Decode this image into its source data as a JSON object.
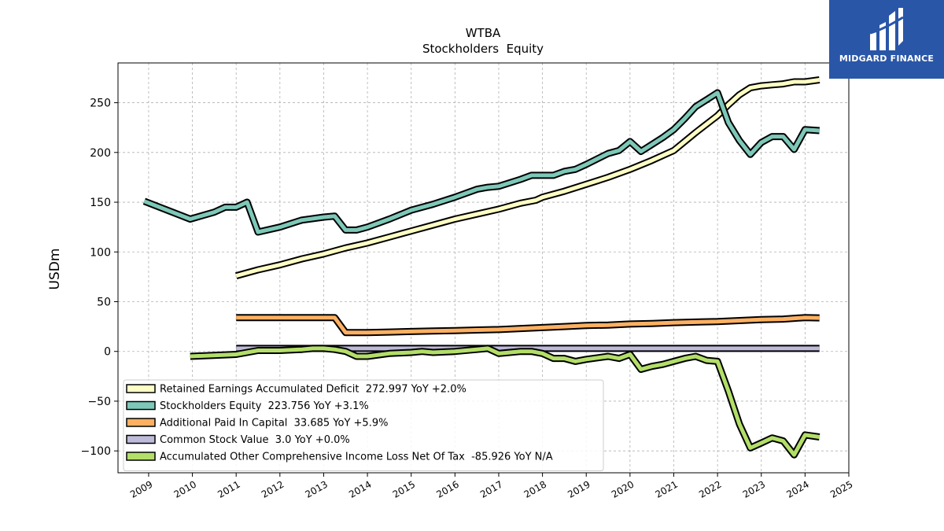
{
  "chart_data": {
    "type": "line",
    "title": "WTBA",
    "subtitle": "Stockholders  Equity",
    "ylabel": "USDm",
    "xlabel": "",
    "xlim": [
      2008.3,
      2025
    ],
    "ylim": [
      -122,
      290
    ],
    "x_ticks": [
      2009,
      2010,
      2011,
      2012,
      2013,
      2014,
      2015,
      2016,
      2017,
      2018,
      2019,
      2020,
      2021,
      2022,
      2023,
      2024,
      2025
    ],
    "x_tick_labels": [
      "2009",
      "2010",
      "2011",
      "2012",
      "2013",
      "2014",
      "2015",
      "2016",
      "2017",
      "2018",
      "2019",
      "2020",
      "2021",
      "2022",
      "2023",
      "2024",
      "2025"
    ],
    "y_ticks": [
      -100,
      -50,
      0,
      50,
      100,
      150,
      200,
      250
    ],
    "y_tick_labels": [
      "−100",
      "−50",
      "0",
      "50",
      "100",
      "150",
      "200",
      "250"
    ],
    "grid": true,
    "legend_position": "lower-left",
    "series": [
      {
        "name": "Retained Earnings Accumulated Deficit",
        "legend": "Retained Earnings Accumulated Deficit  272.997 YoY +2.0%",
        "color": "#ffffc4",
        "points": [
          [
            2011.0,
            76
          ],
          [
            2011.5,
            82
          ],
          [
            2012.0,
            87
          ],
          [
            2012.5,
            93
          ],
          [
            2013.0,
            98
          ],
          [
            2013.5,
            104
          ],
          [
            2014.0,
            109
          ],
          [
            2014.5,
            115
          ],
          [
            2015.0,
            121
          ],
          [
            2015.5,
            127
          ],
          [
            2016.0,
            133
          ],
          [
            2016.5,
            138
          ],
          [
            2017.0,
            143
          ],
          [
            2017.5,
            149
          ],
          [
            2017.85,
            152
          ],
          [
            2018.0,
            155
          ],
          [
            2018.5,
            161
          ],
          [
            2019.0,
            168
          ],
          [
            2019.5,
            175
          ],
          [
            2020.0,
            183
          ],
          [
            2020.5,
            192
          ],
          [
            2021.0,
            202
          ],
          [
            2021.5,
            220
          ],
          [
            2022.0,
            237
          ],
          [
            2022.25,
            248
          ],
          [
            2022.5,
            258
          ],
          [
            2022.75,
            265
          ],
          [
            2023.0,
            267
          ],
          [
            2023.25,
            268
          ],
          [
            2023.5,
            269
          ],
          [
            2023.75,
            271
          ],
          [
            2024.0,
            271
          ],
          [
            2024.33,
            273
          ]
        ]
      },
      {
        "name": "Stockholders Equity",
        "legend": "Stockholders Equity  223.756 YoY +3.1%",
        "color": "#7dc8b8",
        "points": [
          [
            2008.9,
            151
          ],
          [
            2009.95,
            133
          ],
          [
            2010.5,
            140
          ],
          [
            2010.75,
            145
          ],
          [
            2011.0,
            145
          ],
          [
            2011.25,
            150
          ],
          [
            2011.5,
            120
          ],
          [
            2012.0,
            125
          ],
          [
            2012.5,
            132
          ],
          [
            2013.0,
            135
          ],
          [
            2013.25,
            136
          ],
          [
            2013.5,
            122
          ],
          [
            2013.75,
            122
          ],
          [
            2014.0,
            125
          ],
          [
            2014.5,
            133
          ],
          [
            2015.0,
            142
          ],
          [
            2015.5,
            148
          ],
          [
            2016.0,
            155
          ],
          [
            2016.5,
            163
          ],
          [
            2016.75,
            165
          ],
          [
            2017.0,
            166
          ],
          [
            2017.5,
            173
          ],
          [
            2017.75,
            177
          ],
          [
            2018.0,
            177
          ],
          [
            2018.25,
            177
          ],
          [
            2018.5,
            181
          ],
          [
            2018.75,
            183
          ],
          [
            2019.0,
            188
          ],
          [
            2019.5,
            199
          ],
          [
            2019.75,
            202
          ],
          [
            2020.0,
            211
          ],
          [
            2020.25,
            201
          ],
          [
            2020.5,
            208
          ],
          [
            2020.75,
            215
          ],
          [
            2021.0,
            223
          ],
          [
            2021.25,
            234
          ],
          [
            2021.5,
            246
          ],
          [
            2021.75,
            253
          ],
          [
            2022.0,
            260
          ],
          [
            2022.25,
            230
          ],
          [
            2022.5,
            212
          ],
          [
            2022.75,
            198
          ],
          [
            2023.0,
            210
          ],
          [
            2023.25,
            216
          ],
          [
            2023.5,
            216
          ],
          [
            2023.75,
            203
          ],
          [
            2024.0,
            223
          ],
          [
            2024.33,
            222
          ]
        ]
      },
      {
        "name": "Additional Paid In Capital",
        "legend": "Additional Paid In Capital  33.685 YoY +5.9%",
        "color": "#fdb062",
        "points": [
          [
            2011.0,
            34
          ],
          [
            2011.5,
            34
          ],
          [
            2012.0,
            34
          ],
          [
            2012.5,
            34
          ],
          [
            2013.0,
            34
          ],
          [
            2013.25,
            34
          ],
          [
            2013.5,
            19
          ],
          [
            2014.0,
            19
          ],
          [
            2014.5,
            19.5
          ],
          [
            2015.0,
            20
          ],
          [
            2015.5,
            20.5
          ],
          [
            2016.0,
            21
          ],
          [
            2016.5,
            21.5
          ],
          [
            2017.0,
            22
          ],
          [
            2017.5,
            23
          ],
          [
            2018.0,
            24
          ],
          [
            2018.5,
            25
          ],
          [
            2019.0,
            26
          ],
          [
            2019.5,
            26.5
          ],
          [
            2020.0,
            27.5
          ],
          [
            2020.5,
            28
          ],
          [
            2021.0,
            29
          ],
          [
            2021.5,
            29.5
          ],
          [
            2022.0,
            30
          ],
          [
            2022.5,
            31
          ],
          [
            2023.0,
            32
          ],
          [
            2023.5,
            32.5
          ],
          [
            2024.0,
            34
          ],
          [
            2024.33,
            33.7
          ]
        ]
      },
      {
        "name": "Common Stock Value",
        "legend": "Common Stock Value  3.0 YoY +0.0%",
        "color": "#bebada",
        "points": [
          [
            2011.0,
            3
          ],
          [
            2012.0,
            3
          ],
          [
            2013.0,
            3
          ],
          [
            2014.0,
            3
          ],
          [
            2015.0,
            3
          ],
          [
            2016.0,
            3
          ],
          [
            2017.0,
            3
          ],
          [
            2018.0,
            3
          ],
          [
            2019.0,
            3
          ],
          [
            2020.0,
            3
          ],
          [
            2021.0,
            3
          ],
          [
            2022.0,
            3
          ],
          [
            2023.0,
            3
          ],
          [
            2024.0,
            3
          ],
          [
            2024.33,
            3
          ]
        ]
      },
      {
        "name": "Accumulated Other Comprehensive Income Loss Net Of Tax",
        "legend": "Accumulated Other Comprehensive Income Loss Net Of Tax  -85.926 YoY N/A",
        "color": "#b3de69",
        "points": [
          [
            2009.95,
            -5
          ],
          [
            2011.0,
            -3
          ],
          [
            2011.5,
            1
          ],
          [
            2012.0,
            1
          ],
          [
            2012.5,
            2
          ],
          [
            2012.75,
            3
          ],
          [
            2013.0,
            3
          ],
          [
            2013.25,
            2
          ],
          [
            2013.5,
            0
          ],
          [
            2013.75,
            -5
          ],
          [
            2014.0,
            -5
          ],
          [
            2014.5,
            -2
          ],
          [
            2015.0,
            -1
          ],
          [
            2015.25,
            0
          ],
          [
            2015.5,
            -1
          ],
          [
            2016.0,
            0
          ],
          [
            2016.5,
            2
          ],
          [
            2016.75,
            3
          ],
          [
            2017.0,
            -2
          ],
          [
            2017.5,
            0
          ],
          [
            2017.75,
            0
          ],
          [
            2018.0,
            -2
          ],
          [
            2018.25,
            -7
          ],
          [
            2018.5,
            -7
          ],
          [
            2018.75,
            -10
          ],
          [
            2019.0,
            -8
          ],
          [
            2019.5,
            -5
          ],
          [
            2019.75,
            -7
          ],
          [
            2020.0,
            -3
          ],
          [
            2020.25,
            -18
          ],
          [
            2020.5,
            -15
          ],
          [
            2020.75,
            -13
          ],
          [
            2021.0,
            -10
          ],
          [
            2021.25,
            -7
          ],
          [
            2021.5,
            -5
          ],
          [
            2021.75,
            -9
          ],
          [
            2022.0,
            -10
          ],
          [
            2022.25,
            -40
          ],
          [
            2022.5,
            -73
          ],
          [
            2022.75,
            -97
          ],
          [
            2023.0,
            -92
          ],
          [
            2023.25,
            -87
          ],
          [
            2023.5,
            -90
          ],
          [
            2023.75,
            -104
          ],
          [
            2024.0,
            -84
          ],
          [
            2024.33,
            -86
          ]
        ]
      }
    ]
  },
  "logo": {
    "text": "MIDGARD FINANCE",
    "color": "#2a56a8",
    "icon": "midgard-logo-icon"
  }
}
